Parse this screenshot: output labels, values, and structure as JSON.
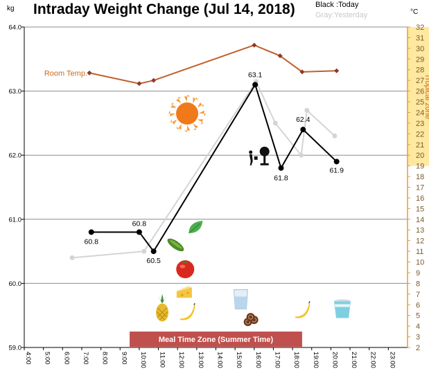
{
  "chart_data": {
    "type": "line",
    "title": "Intraday Weight Change (Jul 14, 2018)",
    "left_unit": "kg",
    "right_unit": "°C",
    "legend": {
      "today": "Black :Today",
      "yesterday": "Gray:Yesterday"
    },
    "x": {
      "range": [
        4,
        24
      ],
      "tick_labels": [
        "4:00",
        "5:00",
        "6:00",
        "7:00",
        "8:00",
        "9:00",
        "10:00",
        "11:00",
        "12:00",
        "13:00",
        "14:00",
        "15:00",
        "16:00",
        "17:00",
        "18:00",
        "19:00",
        "20:00",
        "21:00",
        "22:00",
        "23:00"
      ]
    },
    "y_left": {
      "range": [
        59.0,
        64.0
      ],
      "tick_labels": [
        "59.0",
        "60.0",
        "61.0",
        "62.0",
        "63.0",
        "64.0"
      ],
      "grid": true
    },
    "y_right": {
      "range": [
        2,
        32
      ],
      "tick_labels": [
        "2",
        "3",
        "4",
        "5",
        "6",
        "7",
        "8",
        "9",
        "10",
        "11",
        "12",
        "13",
        "14",
        "15",
        "16",
        "17",
        "18",
        "19",
        "20",
        "21",
        "22",
        "23",
        "24",
        "25",
        "26",
        "27",
        "28",
        "29",
        "30",
        "31",
        "32"
      ]
    },
    "series": [
      {
        "name": "Today",
        "color": "#000000",
        "points": [
          {
            "x": 7.5,
            "y": 60.8,
            "label": "60.8"
          },
          {
            "x": 10.0,
            "y": 60.8,
            "label": "60.8"
          },
          {
            "x": 10.75,
            "y": 60.5,
            "label": "60.5"
          },
          {
            "x": 16.05,
            "y": 63.1,
            "label": "63.1"
          },
          {
            "x": 17.4,
            "y": 61.8,
            "label": "61.8"
          },
          {
            "x": 18.55,
            "y": 62.4,
            "label": "62.4"
          },
          {
            "x": 20.3,
            "y": 61.9,
            "label": "61.9"
          }
        ]
      },
      {
        "name": "Yesterday",
        "color": "#d4d4d4",
        "points": [
          {
            "x": 6.5,
            "y": 60.4
          },
          {
            "x": 10.25,
            "y": 60.5
          },
          {
            "x": 16.1,
            "y": 63.15
          },
          {
            "x": 17.1,
            "y": 62.5
          },
          {
            "x": 18.45,
            "y": 62.0
          },
          {
            "x": 18.75,
            "y": 62.7
          },
          {
            "x": 20.2,
            "y": 62.3
          }
        ]
      }
    ],
    "room_temperature": {
      "name": "Room Temp.",
      "color": "#c0602a",
      "axis": "right",
      "points": [
        {
          "x": 7.4,
          "y": 27.7
        },
        {
          "x": 10.0,
          "y": 26.7
        },
        {
          "x": 10.75,
          "y": 27.0
        },
        {
          "x": 16.0,
          "y": 30.3
        },
        {
          "x": 17.35,
          "y": 29.3
        },
        {
          "x": 18.5,
          "y": 27.8
        },
        {
          "x": 20.3,
          "y": 27.9
        }
      ]
    },
    "tropical_zone": {
      "label": "Tropical zone",
      "range": [
        19,
        32
      ],
      "color": "#ffe8a0"
    },
    "meal_time_zone": {
      "label": "Meal Time Zone (Summer Time)",
      "range": [
        9.5,
        18.5
      ],
      "color": "#c0504d"
    },
    "icons": [
      {
        "name": "sun-icon",
        "x": 12.5,
        "y": 62.65
      },
      {
        "name": "person-watering-tree-icon",
        "x": 16.25,
        "y": 61.95
      },
      {
        "name": "cucumber-icon",
        "x": 11.9,
        "y": 60.6
      },
      {
        "name": "leaf-icon",
        "x": 12.95,
        "y": 60.87
      },
      {
        "name": "tomato-icon",
        "x": 12.4,
        "y": 60.22
      },
      {
        "name": "cheese-icon",
        "x": 12.35,
        "y": 59.84
      },
      {
        "name": "pineapple-icon",
        "x": 11.2,
        "y": 59.6
      },
      {
        "name": "banana-icon",
        "x": 12.5,
        "y": 59.55
      },
      {
        "name": "water-glass-icon",
        "x": 15.3,
        "y": 59.75
      },
      {
        "name": "cookies-icon",
        "x": 15.85,
        "y": 59.42
      },
      {
        "name": "banana-icon",
        "x": 18.5,
        "y": 59.58
      },
      {
        "name": "yogurt-cup-icon",
        "x": 20.6,
        "y": 59.6
      }
    ]
  }
}
